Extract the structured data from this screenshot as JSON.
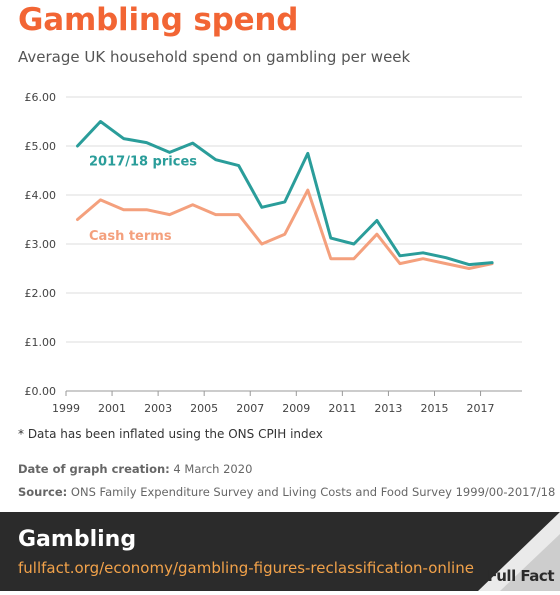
{
  "header": {
    "title": "Gambling spend",
    "subtitle": "Average UK household spend on gambling per week"
  },
  "colors": {
    "accent": "#f26534",
    "series_real": "#2a9d9a",
    "series_cash": "#f4a07d",
    "footer_bg": "#2b2b2b",
    "link": "#f2a24a"
  },
  "chart_data": {
    "type": "line",
    "ylim": [
      0,
      6
    ],
    "xlim": [
      1999,
      2018.8
    ],
    "yticks": [
      "£0.00",
      "£1.00",
      "£2.00",
      "£3.00",
      "£4.00",
      "£5.00",
      "£6.00"
    ],
    "ytick_values": [
      0,
      1,
      2,
      3,
      4,
      5,
      6
    ],
    "xticks": [
      "1999",
      "2001",
      "2003",
      "2005",
      "2007",
      "2009",
      "2011",
      "2013",
      "2015",
      "2017"
    ],
    "xtick_values": [
      1999,
      2001,
      2003,
      2005,
      2007,
      2009,
      2011,
      2013,
      2015,
      2017
    ],
    "grid": "horizontal",
    "series": [
      {
        "name": "2017/18 prices",
        "color": "#2a9d9a",
        "x": [
          1999.5,
          2000.5,
          2001.5,
          2002.5,
          2003.5,
          2004.5,
          2005.5,
          2006.5,
          2007.5,
          2008.5,
          2009.5,
          2010.5,
          2011.5,
          2012.5,
          2013.5,
          2014.5,
          2015.5,
          2016.5,
          2017.5
        ],
        "values": [
          5.0,
          5.5,
          5.15,
          5.07,
          4.87,
          5.06,
          4.72,
          4.6,
          3.75,
          3.86,
          4.85,
          3.12,
          3.0,
          3.48,
          2.76,
          2.82,
          2.72,
          2.58,
          2.62
        ]
      },
      {
        "name": "Cash terms",
        "color": "#f4a07d",
        "x": [
          1999.5,
          2000.5,
          2001.5,
          2002.5,
          2003.5,
          2004.5,
          2005.5,
          2006.5,
          2007.5,
          2008.5,
          2009.5,
          2010.5,
          2011.5,
          2012.5,
          2013.5,
          2014.5,
          2015.5,
          2016.5,
          2017.5
        ],
        "values": [
          3.5,
          3.9,
          3.7,
          3.7,
          3.6,
          3.8,
          3.6,
          3.6,
          3.0,
          3.2,
          4.1,
          2.7,
          2.7,
          3.2,
          2.6,
          2.7,
          2.6,
          2.5,
          2.6
        ]
      }
    ]
  },
  "notes": {
    "footnote": "* Data has been inflated using the ONS CPIH index",
    "date_label": "Date of graph creation:",
    "date_value": " 4 March 2020",
    "source_label": "Source:",
    "source_value": " ONS Family Expenditure Survey and Living Costs and Food Survey 1999/00-2017/18"
  },
  "footer": {
    "title": "Gambling",
    "link": "fullfact.org/economy/gambling-figures-reclassification-online",
    "logo_text": "Full Fact"
  }
}
